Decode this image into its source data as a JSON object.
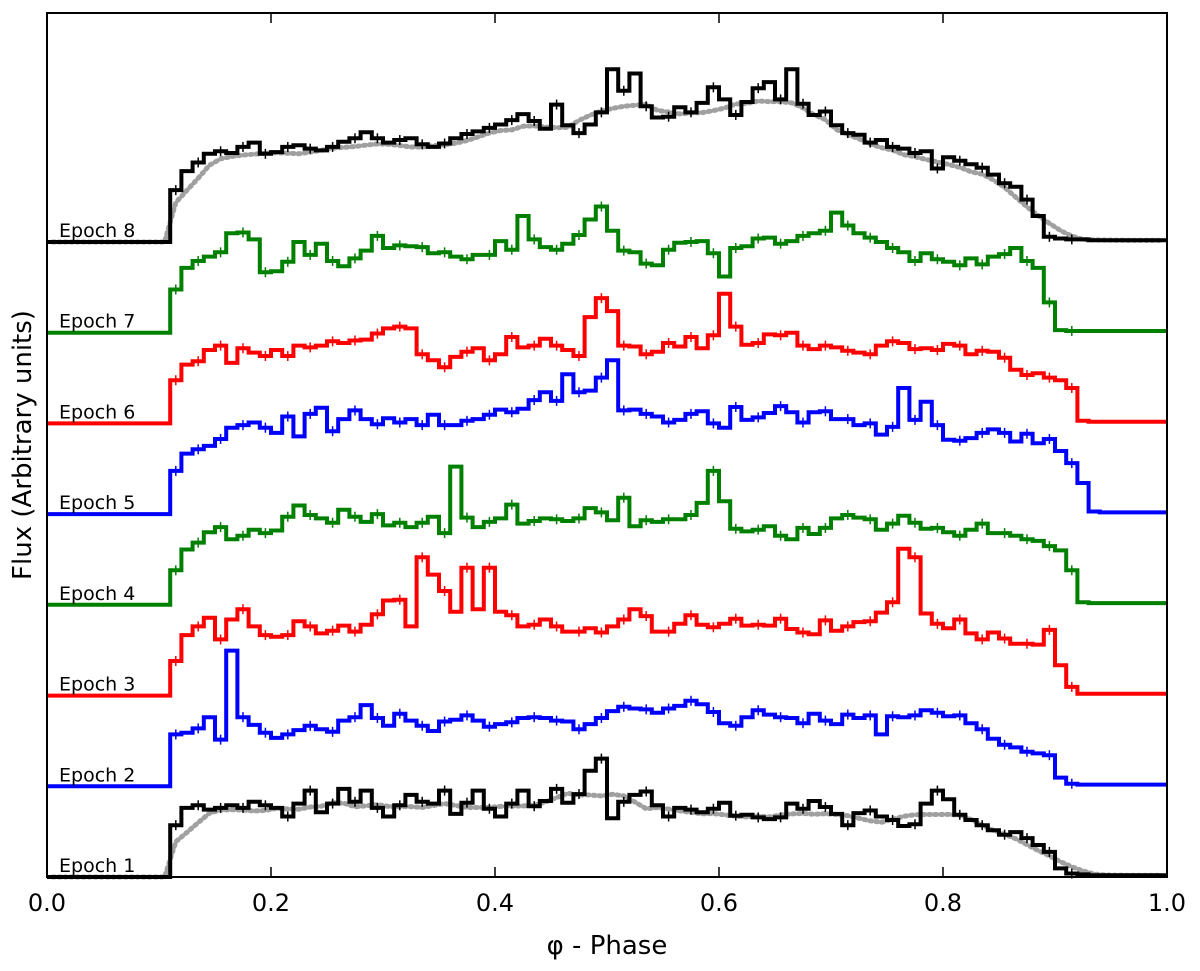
{
  "chart_data": {
    "type": "line",
    "title": "",
    "xlabel": "φ - Phase",
    "ylabel": "Flux (Arbitrary units)",
    "xlim": [
      0.0,
      1.0
    ],
    "xticks": [
      "0.0",
      "0.2",
      "0.4",
      "0.6",
      "0.8",
      "1.0"
    ],
    "ylim": [
      0,
      100
    ],
    "yticks_shown": false,
    "grid": false,
    "legend": "none (epoch labels inside plot, left)",
    "series": [
      {
        "name": "Epoch 1",
        "color": "#000000",
        "offset": 0,
        "level": 0.52,
        "amp": 10.5,
        "values": [
          0,
          0,
          0,
          0,
          0,
          0,
          0,
          0,
          0,
          0,
          0,
          6,
          8,
          8.3,
          7.8,
          8.0,
          8.3,
          8.0,
          8.7,
          8.3,
          8.0,
          7.0,
          8.5,
          10,
          7.5,
          8.5,
          10.2,
          8.7,
          10,
          8.0,
          7.0,
          8.3,
          9.5,
          8.7,
          8.5,
          10,
          7.3,
          8.6,
          10,
          7.9,
          7.0,
          8.5,
          10,
          8.2,
          8.8,
          10.2,
          8.6,
          9.6,
          12.3,
          13.7,
          6.8,
          8.7,
          9.5,
          9.9,
          8.3,
          7.0,
          8.0,
          7.8,
          7.5,
          7.9,
          8.6,
          7.1,
          7.2,
          6.9,
          6.7,
          6.9,
          8.5,
          7.9,
          8.8,
          8.1,
          7.3,
          6.0,
          7.4,
          7.7,
          7.0,
          6.6,
          5.9,
          6.1,
          8.5,
          10,
          9.0,
          7.2,
          6.6,
          6.0,
          5.4,
          4.9,
          5.2,
          4.5,
          3.7,
          2.9,
          1.0,
          0.4,
          0.3,
          0.2,
          0.2,
          0.2,
          0.2,
          0.2,
          0.2,
          0.2
        ]
      },
      {
        "name": "Epoch 2",
        "color": "#0000ff",
        "offset": 10.5,
        "level": 0.52,
        "amp": 10.5,
        "values": [
          0,
          0,
          0,
          0,
          0,
          0,
          0,
          0,
          0,
          0,
          0,
          6,
          6.2,
          6.7,
          8.0,
          5.4,
          15.7,
          8.0,
          7.1,
          6.2,
          5.6,
          6.0,
          6.5,
          7.0,
          6.6,
          6.3,
          7.6,
          8.0,
          9.4,
          7.9,
          7.0,
          8.4,
          7.6,
          7.0,
          6.4,
          7.5,
          7.7,
          8.2,
          7.6,
          6.9,
          7.2,
          7.4,
          7.9,
          8.0,
          7.9,
          7.6,
          7.5,
          6.6,
          7.2,
          7.9,
          8.7,
          9.2,
          9.0,
          8.9,
          8.5,
          9.0,
          9.3,
          9.9,
          9.5,
          8.6,
          7.3,
          7.0,
          8.0,
          8.8,
          8.3,
          8.0,
          7.9,
          7.3,
          8.4,
          7.6,
          7.2,
          8.3,
          7.9,
          8.2,
          6.0,
          8.1,
          8.0,
          8.2,
          8.8,
          8.5,
          8.1,
          8.2,
          7.3,
          6.6,
          5.5,
          4.8,
          4.5,
          4.0,
          3.8,
          3.6,
          1.0,
          0.3,
          0.2,
          0.2,
          0.2,
          0.2,
          0.2,
          0.2,
          0.2,
          0.2
        ]
      },
      {
        "name": "Epoch 3",
        "color": "#ff0000",
        "offset": 21.0,
        "level": 0.52,
        "amp": 10.5,
        "values": [
          0,
          0,
          0,
          0,
          0,
          0,
          0,
          0,
          0,
          0,
          0,
          4,
          7.0,
          8.0,
          9.0,
          6.5,
          8.8,
          10.0,
          8.0,
          7.0,
          6.8,
          7.0,
          8.6,
          8.0,
          7.2,
          7.5,
          8.1,
          7.4,
          8.2,
          9.4,
          11.0,
          11.1,
          8.0,
          16.0,
          14.0,
          12.1,
          9.7,
          14.8,
          10.0,
          14.8,
          9.7,
          9.3,
          8.0,
          8.2,
          8.8,
          8.0,
          7.4,
          7.4,
          7.8,
          7.3,
          8.0,
          8.8,
          10.0,
          9.2,
          7.4,
          7.4,
          8.3,
          9.3,
          8.2,
          7.9,
          8.3,
          8.9,
          8.1,
          8.2,
          8.1,
          8.9,
          7.7,
          7.3,
          7.1,
          8.7,
          7.5,
          8.0,
          8.5,
          8.6,
          9.6,
          10.8,
          17.0,
          16.0,
          9.5,
          8.3,
          7.8,
          8.8,
          7.2,
          6.5,
          7.3,
          6.6,
          6.0,
          6.0,
          5.9,
          7.6,
          3.5,
          1.0,
          0.2,
          0.2,
          0.2,
          0.2,
          0.2,
          0.2,
          0.2,
          0.2
        ]
      },
      {
        "name": "Epoch 4",
        "color": "#008000",
        "offset": 31.5,
        "level": 0.52,
        "amp": 10.5,
        "values": [
          0,
          0,
          0,
          0,
          0,
          0,
          0,
          0,
          0,
          0,
          0,
          4,
          6.4,
          7.2,
          8.4,
          9.0,
          7.6,
          8.0,
          8.7,
          8.3,
          8.6,
          10.2,
          11.5,
          10.4,
          10.0,
          9.5,
          11.0,
          10.2,
          9.6,
          10.5,
          9.2,
          9.5,
          9.0,
          9.5,
          10.2,
          8.3,
          16.0,
          10.1,
          9.0,
          9.6,
          10.0,
          11.6,
          9.4,
          9.7,
          10.0,
          9.9,
          9.7,
          10.0,
          11.2,
          10.7,
          9.8,
          12.4,
          9.1,
          9.8,
          9.6,
          9.9,
          9.9,
          10.4,
          11.8,
          15.5,
          12.0,
          8.8,
          8.5,
          8.7,
          9.1,
          8.0,
          7.6,
          8.9,
          8.2,
          8.9,
          10.0,
          10.4,
          10.1,
          9.9,
          8.7,
          9.4,
          10.3,
          9.5,
          8.8,
          8.9,
          8.4,
          8.0,
          8.7,
          9.4,
          8.3,
          8.3,
          8.0,
          7.6,
          7.4,
          6.8,
          6.3,
          4.0,
          0.3,
          0.2,
          0.2,
          0.2,
          0.2,
          0.2,
          0.2,
          0.2
        ]
      },
      {
        "name": "Epoch 5",
        "color": "#0000ff",
        "offset": 42.0,
        "level": 0.52,
        "amp": 10.5,
        "values": [
          0,
          0,
          0,
          0,
          0,
          0,
          0,
          0,
          0,
          0,
          0,
          5,
          7.0,
          7.5,
          7.9,
          8.7,
          10.0,
          10.3,
          10.6,
          10.0,
          9.4,
          11.3,
          9.0,
          11.6,
          12.3,
          9.6,
          11.0,
          12.0,
          11.0,
          10.4,
          11.1,
          10.6,
          11.0,
          10.3,
          11.5,
          10.3,
          10.3,
          10.8,
          11.0,
          11.5,
          12.1,
          11.8,
          12.2,
          13.2,
          14.1,
          13.1,
          16.2,
          14.1,
          14.3,
          15.8,
          17.8,
          12.0,
          12.1,
          11.6,
          11.3,
          10.6,
          10.9,
          11.6,
          11.9,
          10.5,
          10.0,
          12.4,
          10.9,
          11.2,
          11.7,
          12.5,
          11.8,
          10.6,
          11.8,
          11.9,
          11.0,
          11.0,
          10.3,
          10.5,
          9.2,
          10.1,
          14.6,
          10.9,
          13.0,
          10.3,
          8.6,
          8.5,
          8.8,
          9.4,
          9.8,
          9.4,
          8.4,
          9.3,
          8.2,
          8.7,
          7.3,
          5.9,
          3.6,
          0.3,
          0.2,
          0.2,
          0.2,
          0.2,
          0.2,
          0.2
        ]
      },
      {
        "name": "Epoch 6",
        "color": "#ff0000",
        "offset": 52.5,
        "level": 0.52,
        "amp": 10.5,
        "values": [
          0,
          0,
          0,
          0,
          0,
          0,
          0,
          0,
          0,
          0,
          0,
          5,
          6.8,
          7.2,
          8.5,
          9.0,
          7.0,
          8.7,
          8.2,
          7.8,
          8.5,
          7.8,
          9.0,
          8.8,
          9.0,
          9.5,
          9.3,
          9.6,
          9.7,
          10.4,
          11.0,
          11.2,
          11.0,
          8.0,
          7.3,
          6.5,
          7.7,
          8.3,
          8.7,
          7.3,
          8.0,
          10.0,
          8.8,
          9.0,
          9.8,
          9.0,
          8.5,
          7.8,
          12.3,
          14.5,
          13.0,
          9.0,
          8.9,
          8.0,
          8.3,
          9.3,
          8.9,
          10.0,
          8.7,
          10.2,
          15.0,
          11.2,
          9.1,
          9.3,
          10.3,
          10.2,
          10.5,
          9.0,
          8.6,
          9.0,
          8.8,
          8.4,
          8.2,
          8.0,
          9.0,
          9.5,
          9.3,
          8.6,
          8.7,
          8.5,
          9.2,
          9.0,
          8.0,
          8.4,
          8.3,
          7.6,
          6.2,
          5.6,
          5.8,
          5.3,
          5.0,
          4.1,
          0.3,
          0.2,
          0.2,
          0.2,
          0.2,
          0.2,
          0.2,
          0.2
        ]
      },
      {
        "name": "Epoch 7",
        "color": "#008000",
        "offset": 63.0,
        "level": 0.52,
        "amp": 10.5,
        "values": [
          0,
          0,
          0,
          0,
          0,
          0,
          0,
          0,
          0,
          0,
          0,
          5,
          7.5,
          8.3,
          8.8,
          9.3,
          11.5,
          11.6,
          10.8,
          7.0,
          7.1,
          8.2,
          10.5,
          9.0,
          10.3,
          8.3,
          7.7,
          8.6,
          9.5,
          11.2,
          9.8,
          10.1,
          10.0,
          9.9,
          9.2,
          9.3,
          8.8,
          8.5,
          9.0,
          9.0,
          10.6,
          9.6,
          13.5,
          10.8,
          9.9,
          9.6,
          10.3,
          11.3,
          13.1,
          14.6,
          11.8,
          9.5,
          9.3,
          8.0,
          7.8,
          9.6,
          10.4,
          10.5,
          10.6,
          9.2,
          6.5,
          9.8,
          10.0,
          10.9,
          11.0,
          10.3,
          10.6,
          11.2,
          11.5,
          11.8,
          13.9,
          12.4,
          11.5,
          11.0,
          10.5,
          9.8,
          9.3,
          8.3,
          9.2,
          8.5,
          8.2,
          7.8,
          8.6,
          7.9,
          8.8,
          9.1,
          9.8,
          8.3,
          7.5,
          3.5,
          0.3,
          0.2,
          0.2,
          0.2,
          0.2,
          0.2,
          0.2,
          0.2,
          0.2,
          0.2
        ]
      },
      {
        "name": "Epoch 8",
        "color": "#000000",
        "offset": 73.5,
        "level": 0.52,
        "amp": 10.5,
        "values": [
          0,
          0,
          0,
          0,
          0,
          0,
          0,
          0,
          0,
          0,
          0,
          6,
          8.2,
          9.2,
          10.2,
          10.5,
          10.3,
          11.0,
          11.5,
          10.2,
          10.4,
          11.0,
          11.2,
          10.8,
          10.6,
          11.0,
          11.6,
          12.0,
          12.7,
          12.0,
          11.5,
          11.8,
          12.0,
          11.3,
          11.0,
          11.4,
          12.0,
          12.5,
          12.8,
          13.2,
          13.6,
          14.1,
          14.8,
          14.0,
          13.1,
          15.9,
          13.5,
          12.6,
          13.6,
          15.0,
          20.0,
          17.5,
          19.5,
          15.7,
          14.4,
          14.5,
          15.6,
          15.0,
          16.1,
          17.9,
          16.5,
          14.7,
          16.2,
          17.8,
          18.5,
          16.5,
          20.0,
          16.0,
          14.7,
          15.1,
          13.5,
          12.6,
          12.4,
          11.5,
          11.8,
          11.0,
          10.8,
          10.3,
          10.5,
          8.5,
          9.8,
          9.4,
          9.0,
          8.6,
          7.8,
          6.8,
          6.4,
          4.9,
          3.0,
          0.6,
          0.4,
          0.3,
          0.3,
          0.2,
          0.2,
          0.2,
          0.2,
          0.2,
          0.2,
          0.2
        ]
      }
    ],
    "model_overlays": [
      {
        "on": "Epoch 1",
        "style": "gray dotted"
      },
      {
        "on": "Epoch 8",
        "style": "gray dotted"
      }
    ]
  }
}
